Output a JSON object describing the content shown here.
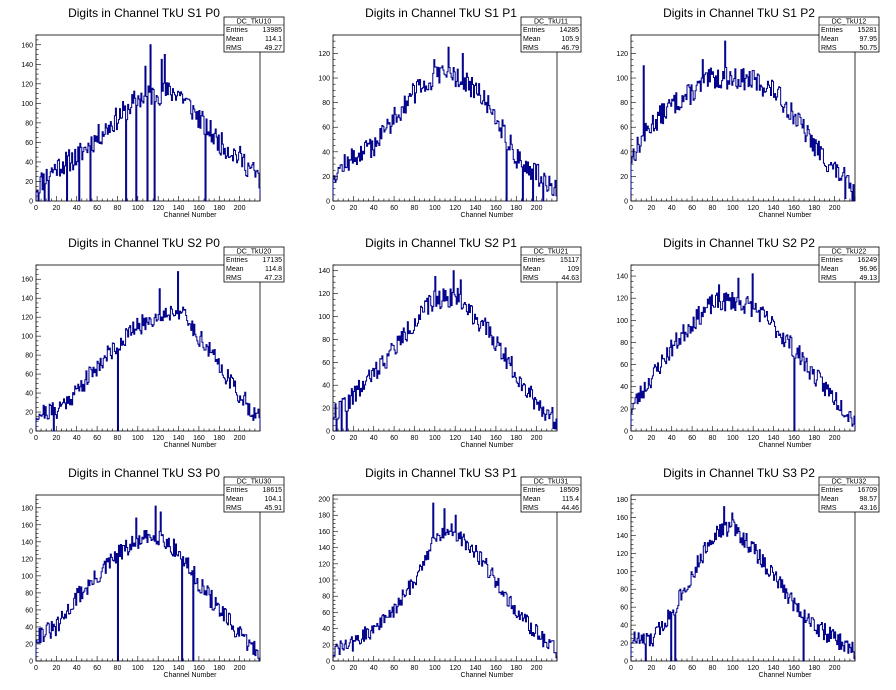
{
  "layout": {
    "columns": 3,
    "rows": 3
  },
  "style": {
    "line_color": "#00008b",
    "axis_color": "#000000",
    "background": "#ffffff"
  },
  "chart_data": [
    {
      "type": "histogram",
      "title": "Digits in Channel TkU S1 P0",
      "xlabel": "Channel Number",
      "xlim": [
        0,
        220
      ],
      "ylim": [
        0,
        170
      ],
      "xticks": [
        0,
        20,
        40,
        60,
        80,
        100,
        120,
        140,
        160,
        180,
        200
      ],
      "yticks": [
        0,
        20,
        40,
        60,
        80,
        100,
        120,
        140,
        160
      ],
      "stats": {
        "name": "DC_TkU10",
        "entries": "13985",
        "mean": "114.1",
        "rms": "49.27"
      },
      "stat_labels": [
        "Entries",
        "Mean",
        "RMS"
      ],
      "profile": [
        [
          0,
          15
        ],
        [
          20,
          35
        ],
        [
          40,
          45
        ],
        [
          60,
          65
        ],
        [
          80,
          85
        ],
        [
          100,
          105
        ],
        [
          110,
          108
        ],
        [
          120,
          110
        ],
        [
          140,
          112
        ],
        [
          160,
          85
        ],
        [
          180,
          60
        ],
        [
          200,
          45
        ],
        [
          220,
          22
        ]
      ],
      "dips": [
        [
          2,
          0
        ],
        [
          8,
          0
        ],
        [
          12,
          0
        ],
        [
          30,
          0
        ],
        [
          42,
          0
        ],
        [
          53,
          0
        ],
        [
          88,
          0
        ],
        [
          98,
          0
        ],
        [
          109,
          0
        ],
        [
          116,
          0
        ],
        [
          126,
          0
        ],
        [
          166,
          0
        ]
      ],
      "spikes": [
        [
          112,
          160
        ],
        [
          123,
          145
        ],
        [
          126,
          150
        ],
        [
          107,
          138
        ]
      ],
      "noise": 12,
      "seed": 11
    },
    {
      "type": "histogram",
      "title": "Digits in Channel TkU S1 P1",
      "xlabel": "Channel Number",
      "xlim": [
        0,
        220
      ],
      "ylim": [
        0,
        135
      ],
      "xticks": [
        0,
        20,
        40,
        60,
        80,
        100,
        120,
        140,
        160,
        180,
        200
      ],
      "yticks": [
        0,
        20,
        40,
        60,
        80,
        100,
        120
      ],
      "stats": {
        "name": "DC_TkU11",
        "entries": "14285",
        "mean": "105.9",
        "rms": "46.79"
      },
      "stat_labels": [
        "Entries",
        "Mean",
        "RMS"
      ],
      "profile": [
        [
          0,
          22
        ],
        [
          20,
          35
        ],
        [
          40,
          45
        ],
        [
          60,
          68
        ],
        [
          80,
          88
        ],
        [
          100,
          100
        ],
        [
          115,
          105
        ],
        [
          140,
          90
        ],
        [
          160,
          70
        ],
        [
          180,
          35
        ],
        [
          200,
          22
        ],
        [
          220,
          10
        ]
      ],
      "dips": [
        [
          170,
          0
        ],
        [
          186,
          0
        ],
        [
          196,
          0
        ],
        [
          206,
          0
        ]
      ],
      "spikes": [
        [
          113,
          125
        ],
        [
          127,
          120
        ],
        [
          99,
          115
        ]
      ],
      "noise": 9,
      "seed": 12
    },
    {
      "type": "histogram",
      "title": "Digits in Channel TkU S1 P2",
      "xlabel": "Channel Number",
      "xlim": [
        0,
        220
      ],
      "ylim": [
        0,
        135
      ],
      "xticks": [
        0,
        20,
        40,
        60,
        80,
        100,
        120,
        140,
        160,
        180,
        200
      ],
      "yticks": [
        0,
        20,
        40,
        60,
        80,
        100,
        120
      ],
      "stats": {
        "name": "DC_TkU12",
        "entries": "15281",
        "mean": "97.95",
        "rms": "50.75"
      },
      "stat_labels": [
        "Entries",
        "Mean",
        "RMS"
      ],
      "profile": [
        [
          0,
          35
        ],
        [
          20,
          62
        ],
        [
          40,
          78
        ],
        [
          60,
          88
        ],
        [
          80,
          100
        ],
        [
          100,
          100
        ],
        [
          120,
          98
        ],
        [
          140,
          90
        ],
        [
          160,
          70
        ],
        [
          180,
          45
        ],
        [
          200,
          25
        ],
        [
          210,
          18
        ],
        [
          220,
          3
        ]
      ],
      "dips": [
        [
          210,
          2
        ]
      ],
      "spikes": [
        [
          92,
          130
        ],
        [
          12,
          110
        ],
        [
          70,
          115
        ]
      ],
      "noise": 9,
      "seed": 13
    },
    {
      "type": "histogram",
      "title": "Digits in Channel TkU S2 P0",
      "xlabel": "Channel Number",
      "xlim": [
        0,
        220
      ],
      "ylim": [
        0,
        175
      ],
      "xticks": [
        0,
        20,
        40,
        60,
        80,
        100,
        120,
        140,
        160,
        180,
        200
      ],
      "yticks": [
        0,
        20,
        40,
        60,
        80,
        100,
        120,
        140,
        160
      ],
      "stats": {
        "name": "DC_TkU20",
        "entries": "17135",
        "mean": "114.8",
        "rms": "47.23"
      },
      "stat_labels": [
        "Entries",
        "Mean",
        "RMS"
      ],
      "profile": [
        [
          0,
          18
        ],
        [
          20,
          22
        ],
        [
          40,
          42
        ],
        [
          60,
          68
        ],
        [
          80,
          92
        ],
        [
          100,
          110
        ],
        [
          120,
          122
        ],
        [
          140,
          128
        ],
        [
          160,
          100
        ],
        [
          180,
          70
        ],
        [
          200,
          38
        ],
        [
          220,
          12
        ]
      ],
      "dips": [
        [
          17,
          0
        ],
        [
          80,
          0
        ]
      ],
      "spikes": [
        [
          139,
          168
        ],
        [
          121,
          150
        ]
      ],
      "noise": 10,
      "seed": 21
    },
    {
      "type": "histogram",
      "title": "Digits in Channel TkU S2 P1",
      "xlabel": "Channel Number",
      "xlim": [
        0,
        220
      ],
      "ylim": [
        0,
        145
      ],
      "xticks": [
        0,
        20,
        40,
        60,
        80,
        100,
        120,
        140,
        160,
        180,
        200
      ],
      "yticks": [
        0,
        20,
        40,
        60,
        80,
        100,
        120,
        140
      ],
      "stats": {
        "name": "DC_TkU21",
        "entries": "15117",
        "mean": "109",
        "rms": "44.63"
      },
      "stat_labels": [
        "Entries",
        "Mean",
        "RMS"
      ],
      "profile": [
        [
          0,
          15
        ],
        [
          20,
          30
        ],
        [
          40,
          50
        ],
        [
          60,
          72
        ],
        [
          80,
          95
        ],
        [
          100,
          115
        ],
        [
          120,
          118
        ],
        [
          140,
          100
        ],
        [
          160,
          78
        ],
        [
          180,
          50
        ],
        [
          200,
          25
        ],
        [
          220,
          8
        ]
      ],
      "dips": [
        [
          3,
          0
        ],
        [
          8,
          0
        ],
        [
          13,
          0
        ]
      ],
      "spikes": [
        [
          118,
          140
        ],
        [
          100,
          135
        ],
        [
          125,
          132
        ]
      ],
      "noise": 9,
      "seed": 22
    },
    {
      "type": "histogram",
      "title": "Digits in Channel TkU S2 P2",
      "xlabel": "Channel Number",
      "xlim": [
        0,
        220
      ],
      "ylim": [
        0,
        150
      ],
      "xticks": [
        0,
        20,
        40,
        60,
        80,
        100,
        120,
        140,
        160,
        180,
        200
      ],
      "yticks": [
        0,
        20,
        40,
        60,
        80,
        100,
        120,
        140
      ],
      "stats": {
        "name": "DC_TkU22",
        "entries": "16249",
        "mean": "96.96",
        "rms": "49.13"
      },
      "stat_labels": [
        "Entries",
        "Mean",
        "RMS"
      ],
      "profile": [
        [
          0,
          20
        ],
        [
          20,
          48
        ],
        [
          40,
          75
        ],
        [
          60,
          98
        ],
        [
          80,
          115
        ],
        [
          100,
          118
        ],
        [
          120,
          112
        ],
        [
          140,
          95
        ],
        [
          160,
          75
        ],
        [
          180,
          50
        ],
        [
          200,
          30
        ],
        [
          220,
          10
        ]
      ],
      "dips": [
        [
          160,
          0
        ]
      ],
      "spikes": [
        [
          119,
          142
        ],
        [
          105,
          138
        ],
        [
          86,
          132
        ]
      ],
      "noise": 9,
      "seed": 23
    },
    {
      "type": "histogram",
      "title": "Digits in Channel TkU S3 P0",
      "xlabel": "Channel Number",
      "xlim": [
        0,
        220
      ],
      "ylim": [
        0,
        195
      ],
      "xticks": [
        0,
        20,
        40,
        60,
        80,
        100,
        120,
        140,
        160,
        180,
        200
      ],
      "yticks": [
        0,
        20,
        40,
        60,
        80,
        100,
        120,
        140,
        160,
        180
      ],
      "stats": {
        "name": "DC_TkU30",
        "entries": "18615",
        "mean": "104.1",
        "rms": "45.91"
      },
      "stat_labels": [
        "Entries",
        "Mean",
        "RMS"
      ],
      "profile": [
        [
          0,
          30
        ],
        [
          20,
          38
        ],
        [
          40,
          75
        ],
        [
          60,
          98
        ],
        [
          80,
          125
        ],
        [
          100,
          140
        ],
        [
          120,
          148
        ],
        [
          140,
          128
        ],
        [
          160,
          92
        ],
        [
          180,
          60
        ],
        [
          200,
          30
        ],
        [
          220,
          8
        ]
      ],
      "dips": [
        [
          80,
          0
        ],
        [
          143,
          0
        ],
        [
          154,
          0
        ]
      ],
      "spikes": [
        [
          117,
          182
        ],
        [
          122,
          175
        ],
        [
          98,
          168
        ]
      ],
      "noise": 11,
      "seed": 31
    },
    {
      "type": "histogram",
      "title": "Digits in Channel TkU S3 P1",
      "xlabel": "Channel Number",
      "xlim": [
        0,
        220
      ],
      "ylim": [
        0,
        205
      ],
      "xticks": [
        0,
        20,
        40,
        60,
        80,
        100,
        120,
        140,
        160,
        180,
        200
      ],
      "yticks": [
        0,
        20,
        40,
        60,
        80,
        100,
        120,
        140,
        160,
        180,
        200
      ],
      "stats": {
        "name": "DC_TkU31",
        "entries": "18509",
        "mean": "115.4",
        "rms": "44.46"
      },
      "stat_labels": [
        "Entries",
        "Mean",
        "RMS"
      ],
      "profile": [
        [
          0,
          12
        ],
        [
          20,
          22
        ],
        [
          40,
          40
        ],
        [
          60,
          62
        ],
        [
          80,
          100
        ],
        [
          100,
          150
        ],
        [
          115,
          165
        ],
        [
          140,
          135
        ],
        [
          160,
          100
        ],
        [
          180,
          60
        ],
        [
          200,
          35
        ],
        [
          220,
          12
        ]
      ],
      "dips": [],
      "spikes": [
        [
          98,
          195
        ],
        [
          109,
          188
        ],
        [
          120,
          180
        ]
      ],
      "noise": 10,
      "seed": 32
    },
    {
      "type": "histogram",
      "title": "Digits in Channel TkU S3 P2",
      "xlabel": "Channel Number",
      "xlim": [
        0,
        220
      ],
      "ylim": [
        0,
        185
      ],
      "xticks": [
        0,
        20,
        40,
        60,
        80,
        100,
        120,
        140,
        160,
        180,
        200
      ],
      "yticks": [
        0,
        20,
        40,
        60,
        80,
        100,
        120,
        140,
        160,
        180
      ],
      "stats": {
        "name": "DC_TkU32",
        "entries": "16709",
        "mean": "98.57",
        "rms": "43.16"
      },
      "stat_labels": [
        "Entries",
        "Mean",
        "RMS"
      ],
      "profile": [
        [
          0,
          25
        ],
        [
          20,
          22
        ],
        [
          40,
          55
        ],
        [
          60,
          95
        ],
        [
          80,
          140
        ],
        [
          100,
          150
        ],
        [
          120,
          125
        ],
        [
          140,
          95
        ],
        [
          160,
          65
        ],
        [
          180,
          40
        ],
        [
          200,
          25
        ],
        [
          220,
          10
        ]
      ],
      "dips": [
        [
          14,
          0
        ],
        [
          39,
          0
        ],
        [
          43,
          0
        ],
        [
          169,
          0
        ]
      ],
      "spikes": [
        [
          91,
          172
        ],
        [
          48,
          80
        ],
        [
          99,
          165
        ]
      ],
      "noise": 10,
      "seed": 33
    }
  ]
}
